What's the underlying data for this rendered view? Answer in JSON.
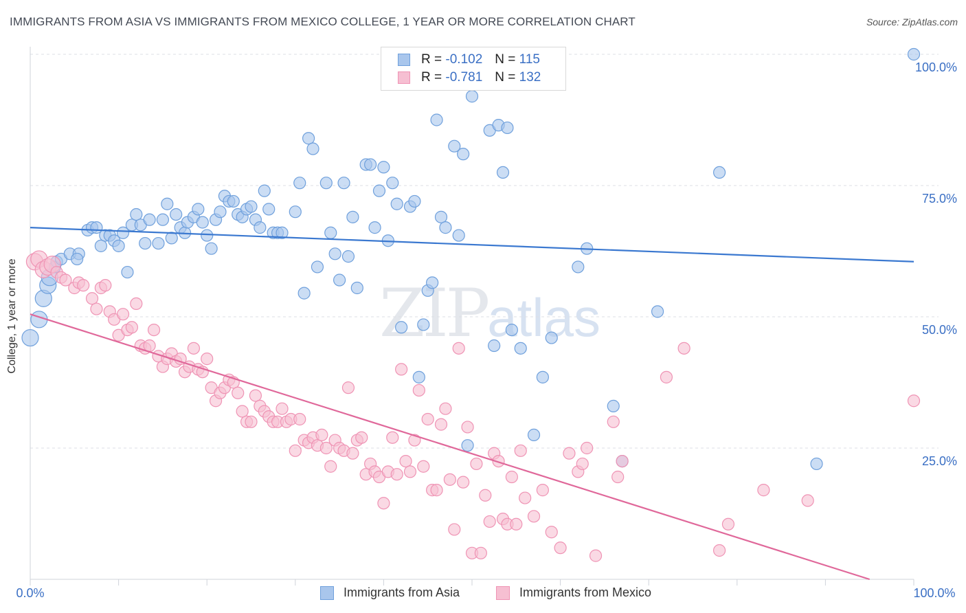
{
  "title": "IMMIGRANTS FROM ASIA VS IMMIGRANTS FROM MEXICO COLLEGE, 1 YEAR OR MORE CORRELATION CHART",
  "source": "Source: ZipAtlas.com",
  "watermark": {
    "zip": "ZIP",
    "atlas": "atlas"
  },
  "legend_top": {
    "rows": [
      {
        "r_label": "R =",
        "r_value": "-0.102",
        "n_label": "N =",
        "n_value": "115",
        "color": "#6fa0dc"
      },
      {
        "r_label": "R =",
        "r_value": "-0.781",
        "n_label": "N =",
        "n_value": "132",
        "color": "#ef93b4"
      }
    ]
  },
  "legend_bottom": [
    {
      "label": "Immigrants from Asia",
      "color": "#6fa0dc"
    },
    {
      "label": "Immigrants from Mexico",
      "color": "#ef93b4"
    }
  ],
  "chart_data": {
    "type": "scatter",
    "ylabel": "College, 1 year or more",
    "xlim": [
      0,
      100
    ],
    "ylim": [
      0,
      100
    ],
    "x_tick_labels": [
      "0.0%",
      "100.0%"
    ],
    "y_tick_labels": [
      "25.0%",
      "50.0%",
      "75.0%",
      "100.0%"
    ],
    "y_ticks": [
      25,
      50,
      75,
      100
    ],
    "grid": "horizontal dashed",
    "colors": {
      "asia_fill": "#a9c6ec",
      "asia_stroke": "#6fa0dc",
      "asia_line": "#3a78d0",
      "mexico_fill": "#f6bfd2",
      "mexico_stroke": "#ef93b4",
      "mexico_line": "#e0689a"
    },
    "series": [
      {
        "name": "Immigrants from Asia",
        "trend": [
          [
            0,
            67
          ],
          [
            100,
            60.5
          ]
        ],
        "points": [
          [
            0,
            46
          ],
          [
            1,
            49.5
          ],
          [
            1.5,
            53.5
          ],
          [
            2,
            56
          ],
          [
            2.2,
            57.5
          ],
          [
            2.8,
            59.5
          ],
          [
            3,
            60.5
          ],
          [
            3.5,
            61
          ],
          [
            4.5,
            62
          ],
          [
            5.5,
            62
          ],
          [
            5.3,
            61
          ],
          [
            6.5,
            66.5
          ],
          [
            7,
            67
          ],
          [
            7.5,
            67
          ],
          [
            8,
            63.5
          ],
          [
            8.5,
            65.5
          ],
          [
            9,
            65.5
          ],
          [
            9.5,
            64.5
          ],
          [
            10,
            63.5
          ],
          [
            10.5,
            66
          ],
          [
            11,
            58.5
          ],
          [
            11.5,
            67.5
          ],
          [
            12,
            69.5
          ],
          [
            12.5,
            67.5
          ],
          [
            13,
            64
          ],
          [
            13.5,
            68.5
          ],
          [
            14.5,
            64
          ],
          [
            15,
            68.5
          ],
          [
            15.5,
            71.5
          ],
          [
            16,
            65
          ],
          [
            16.5,
            69.5
          ],
          [
            17,
            67
          ],
          [
            17.5,
            66
          ],
          [
            17.8,
            68
          ],
          [
            18.5,
            69
          ],
          [
            19,
            70.5
          ],
          [
            19.5,
            68
          ],
          [
            20,
            65.5
          ],
          [
            20.5,
            63
          ],
          [
            21,
            68.5
          ],
          [
            21.5,
            70
          ],
          [
            22,
            73
          ],
          [
            22.5,
            72
          ],
          [
            23,
            72
          ],
          [
            23.5,
            69.5
          ],
          [
            24,
            69
          ],
          [
            24.5,
            70.5
          ],
          [
            25,
            71
          ],
          [
            25.5,
            68.5
          ],
          [
            26,
            67
          ],
          [
            26.5,
            74
          ],
          [
            27,
            70.5
          ],
          [
            27.5,
            66
          ],
          [
            28,
            66
          ],
          [
            28.5,
            66
          ],
          [
            30,
            70
          ],
          [
            30.5,
            75.5
          ],
          [
            31,
            54.5
          ],
          [
            31.5,
            84
          ],
          [
            32,
            82
          ],
          [
            32.5,
            59.5
          ],
          [
            33.5,
            75.5
          ],
          [
            34,
            66
          ],
          [
            34.5,
            62
          ],
          [
            35,
            57
          ],
          [
            35.5,
            75.5
          ],
          [
            36,
            61.5
          ],
          [
            36.5,
            69
          ],
          [
            37,
            55.5
          ],
          [
            38,
            79
          ],
          [
            38.5,
            79
          ],
          [
            39,
            67
          ],
          [
            39.5,
            74
          ],
          [
            40,
            78.5
          ],
          [
            40.5,
            64.5
          ],
          [
            41,
            75.5
          ],
          [
            41.5,
            71.5
          ],
          [
            42,
            48
          ],
          [
            43,
            71
          ],
          [
            43.5,
            72
          ],
          [
            44,
            38.5
          ],
          [
            44.5,
            48.5
          ],
          [
            45,
            55
          ],
          [
            45.5,
            56.5
          ],
          [
            46,
            87.5
          ],
          [
            46.5,
            69
          ],
          [
            47,
            67
          ],
          [
            48,
            82.5
          ],
          [
            48.5,
            65.5
          ],
          [
            49,
            81
          ],
          [
            49.5,
            25.5
          ],
          [
            50,
            92
          ],
          [
            52,
            85.5
          ],
          [
            52.5,
            44.5
          ],
          [
            53,
            86.5
          ],
          [
            53.5,
            77.5
          ],
          [
            54,
            86
          ],
          [
            54.5,
            47.5
          ],
          [
            55.5,
            44
          ],
          [
            57,
            27.5
          ],
          [
            58,
            38.5
          ],
          [
            59,
            46
          ],
          [
            62,
            59.5
          ],
          [
            63,
            63
          ],
          [
            66,
            33
          ],
          [
            67,
            22.5
          ],
          [
            71,
            51
          ],
          [
            78,
            77.5
          ],
          [
            89,
            22
          ],
          [
            100,
            100
          ]
        ]
      },
      {
        "name": "Immigrants from Mexico",
        "trend": [
          [
            0,
            50.5
          ],
          [
            95,
            0
          ]
        ],
        "points": [
          [
            0.5,
            60.5
          ],
          [
            1,
            61
          ],
          [
            1.5,
            59
          ],
          [
            2,
            59.5
          ],
          [
            2.5,
            60
          ],
          [
            3,
            58.5
          ],
          [
            3.5,
            57.5
          ],
          [
            4,
            57
          ],
          [
            5,
            55.5
          ],
          [
            5.5,
            56.5
          ],
          [
            6,
            56
          ],
          [
            7,
            53.5
          ],
          [
            7.5,
            51.5
          ],
          [
            8,
            55.5
          ],
          [
            8.5,
            56
          ],
          [
            9,
            51
          ],
          [
            9.5,
            49.5
          ],
          [
            10,
            46.5
          ],
          [
            10.5,
            50.5
          ],
          [
            11,
            47.5
          ],
          [
            11.5,
            48
          ],
          [
            12,
            52.5
          ],
          [
            12.5,
            44.5
          ],
          [
            13,
            44
          ],
          [
            13.5,
            44.5
          ],
          [
            14,
            47.5
          ],
          [
            14.5,
            42.5
          ],
          [
            15,
            40.5
          ],
          [
            15.5,
            42
          ],
          [
            16,
            43
          ],
          [
            16.5,
            41.5
          ],
          [
            17,
            42
          ],
          [
            17.5,
            39.5
          ],
          [
            18,
            40.5
          ],
          [
            18.5,
            44
          ],
          [
            19,
            40
          ],
          [
            19.5,
            39.5
          ],
          [
            20,
            42
          ],
          [
            20.5,
            36.5
          ],
          [
            21,
            34
          ],
          [
            21.5,
            35.5
          ],
          [
            22,
            36.5
          ],
          [
            22.5,
            38
          ],
          [
            23,
            37.5
          ],
          [
            23.5,
            35.5
          ],
          [
            24,
            32
          ],
          [
            24.5,
            30
          ],
          [
            25,
            30
          ],
          [
            25.5,
            35
          ],
          [
            26,
            33
          ],
          [
            26.5,
            32
          ],
          [
            27,
            31
          ],
          [
            27.5,
            30
          ],
          [
            28,
            30
          ],
          [
            28.5,
            32.5
          ],
          [
            29,
            30
          ],
          [
            29.5,
            30.5
          ],
          [
            30,
            24.5
          ],
          [
            30.5,
            30.5
          ],
          [
            31,
            26.5
          ],
          [
            31.5,
            26
          ],
          [
            32,
            27
          ],
          [
            32.5,
            25.5
          ],
          [
            33,
            27.5
          ],
          [
            33.5,
            25
          ],
          [
            34,
            21.5
          ],
          [
            34.5,
            26.5
          ],
          [
            35,
            25
          ],
          [
            35.5,
            24.5
          ],
          [
            36,
            36.5
          ],
          [
            36.5,
            24
          ],
          [
            37,
            26.5
          ],
          [
            37.5,
            27
          ],
          [
            38,
            20
          ],
          [
            38.5,
            22
          ],
          [
            39,
            20.5
          ],
          [
            39.5,
            19.5
          ],
          [
            40,
            14.5
          ],
          [
            40.5,
            20.5
          ],
          [
            41,
            27
          ],
          [
            41.5,
            20
          ],
          [
            42,
            40
          ],
          [
            42.5,
            22.5
          ],
          [
            43,
            20.5
          ],
          [
            43.5,
            26.5
          ],
          [
            44,
            36
          ],
          [
            44.5,
            21.5
          ],
          [
            45,
            30.5
          ],
          [
            45.5,
            17
          ],
          [
            46,
            17
          ],
          [
            46.5,
            29.5
          ],
          [
            47,
            32.5
          ],
          [
            47.5,
            19
          ],
          [
            48,
            9.5
          ],
          [
            48.5,
            44
          ],
          [
            49,
            18.5
          ],
          [
            49.5,
            29
          ],
          [
            50,
            5
          ],
          [
            50.5,
            22
          ],
          [
            51,
            5
          ],
          [
            51.5,
            16
          ],
          [
            52,
            11
          ],
          [
            52.5,
            24
          ],
          [
            53,
            22.5
          ],
          [
            53.5,
            11.5
          ],
          [
            54,
            10.5
          ],
          [
            54.5,
            19.5
          ],
          [
            55,
            10.5
          ],
          [
            55.5,
            24.5
          ],
          [
            56,
            15.5
          ],
          [
            57,
            12
          ],
          [
            58,
            17
          ],
          [
            59,
            9
          ],
          [
            60,
            6
          ],
          [
            61,
            24
          ],
          [
            62,
            20.5
          ],
          [
            62.5,
            22
          ],
          [
            63,
            25
          ],
          [
            64,
            4.5
          ],
          [
            66,
            30
          ],
          [
            66.5,
            19.5
          ],
          [
            67,
            22.5
          ],
          [
            72,
            38.5
          ],
          [
            74,
            44
          ],
          [
            78,
            5.5
          ],
          [
            79,
            10.5
          ],
          [
            83,
            17
          ],
          [
            88,
            15
          ],
          [
            100,
            34
          ]
        ]
      }
    ]
  }
}
